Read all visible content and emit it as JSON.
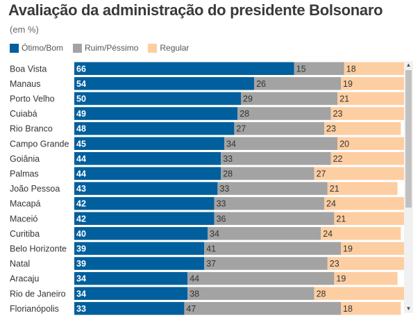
{
  "header": {
    "title": "Avaliação da administração do presidente Bolsonaro",
    "subtitle": "(em %)"
  },
  "legend": [
    {
      "label": "Ótimo/Bom",
      "color": "#005f9c"
    },
    {
      "label": "Ruim/Péssimo",
      "color": "#a3a3a3"
    },
    {
      "label": "Regular",
      "color": "#fdcea2"
    }
  ],
  "chart_data": {
    "type": "bar",
    "orientation": "horizontal",
    "stacked": true,
    "title": "Avaliação da administração do presidente Bolsonaro",
    "subtitle": "(em %)",
    "categories": [
      "Boa Vista",
      "Manaus",
      "Porto Velho",
      "Cuiabá",
      "Rio Branco",
      "Campo Grande",
      "Goiânia",
      "Palmas",
      "João Pessoa",
      "Macapá",
      "Maceió",
      "Curitiba",
      "Belo Horizonte",
      "Natal",
      "Aracaju",
      "Rio de Janeiro",
      "Florianópolis"
    ],
    "series": [
      {
        "name": "Ótimo/Bom",
        "color": "#005f9c",
        "values": [
          66,
          54,
          50,
          49,
          48,
          45,
          44,
          44,
          43,
          42,
          42,
          40,
          39,
          39,
          34,
          34,
          33
        ]
      },
      {
        "name": "Ruim/Péssimo",
        "color": "#a3a3a3",
        "values": [
          15,
          26,
          29,
          28,
          27,
          34,
          33,
          28,
          33,
          33,
          36,
          34,
          41,
          37,
          44,
          38,
          47
        ]
      },
      {
        "name": "Regular",
        "color": "#fdcea2",
        "values": [
          18,
          19,
          21,
          23,
          23,
          20,
          22,
          27,
          21,
          24,
          21,
          24,
          19,
          23,
          19,
          28,
          18
        ]
      }
    ],
    "xlim": [
      0,
      100
    ],
    "legend_position": "top-left",
    "grid": false
  },
  "scrollbar": {
    "up_icon": "▲",
    "down_icon": "▼"
  }
}
